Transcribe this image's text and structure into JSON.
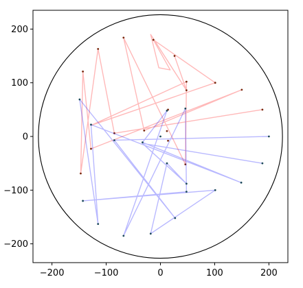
{
  "chart_data": {
    "type": "line",
    "title": "",
    "xlabel": "",
    "ylabel": "",
    "xlim": [
      -235,
      235
    ],
    "ylim": [
      -235,
      235
    ],
    "xticks": [
      -200,
      -100,
      0,
      100,
      200
    ],
    "yticks": [
      200,
      100,
      0,
      -100,
      -200
    ],
    "xtick_labels": [
      "−200",
      "−100",
      "0",
      "100",
      "200"
    ],
    "ytick_labels": [
      "200",
      "100",
      "0",
      "−100",
      "−200"
    ],
    "grid": false,
    "aspect": "equal",
    "circle": {
      "center": [
        0,
        0
      ],
      "radius": 225,
      "color": "#000000"
    },
    "series": [
      {
        "color": "#ff0000",
        "opacity": 0.28,
        "points": [
          [
            188,
            50
          ],
          [
            -85,
            6
          ],
          [
            -115,
            163
          ],
          [
            -147,
            -69
          ],
          [
            -143,
            121
          ],
          [
            -128,
            -23
          ],
          [
            150,
            87
          ],
          [
            -30,
            11
          ],
          [
            -68,
            184
          ],
          [
            46,
            -52
          ],
          [
            48,
            102
          ],
          [
            -127,
            21
          ],
          [
            101,
            100
          ],
          [
            -13,
            180
          ],
          [
            18,
            124
          ],
          [
            -3,
            128
          ],
          [
            -18,
            190
          ],
          [
            48,
            86
          ],
          [
            26,
            150
          ]
        ],
        "marker_points": [
          [
            188,
            50
          ],
          [
            -85,
            6
          ],
          [
            -115,
            163
          ],
          [
            -147,
            -69
          ],
          [
            -143,
            121
          ],
          [
            -128,
            -23
          ],
          [
            150,
            87
          ],
          [
            -30,
            11
          ],
          [
            -68,
            184
          ],
          [
            46,
            -52
          ],
          [
            48,
            102
          ],
          [
            101,
            100
          ],
          [
            -13,
            180
          ],
          [
            48,
            86
          ],
          [
            26,
            150
          ],
          [
            14,
            -8
          ],
          [
            12,
            10
          ],
          [
            14,
            50
          ]
        ]
      },
      {
        "color": "#0000ff",
        "opacity": 0.28,
        "points": [
          [
            200,
            0
          ],
          [
            -85,
            -7
          ],
          [
            27,
            -152
          ],
          [
            -149,
            69
          ],
          [
            -115,
            -163
          ],
          [
            -128,
            22
          ],
          [
            149,
            -86
          ],
          [
            -33,
            -11
          ],
          [
            12,
            48
          ],
          [
            -68,
            -185
          ],
          [
            46,
            52
          ],
          [
            48,
            -103
          ],
          [
            -143,
            -120
          ],
          [
            101,
            -100
          ],
          [
            -18,
            -181
          ],
          [
            12,
            -50
          ],
          [
            48,
            -88
          ],
          [
            -33,
            -13
          ],
          [
            188,
            -50
          ]
        ],
        "marker_points": [
          [
            200,
            0
          ],
          [
            -85,
            -7
          ],
          [
            27,
            -152
          ],
          [
            -149,
            69
          ],
          [
            -115,
            -163
          ],
          [
            -128,
            22
          ],
          [
            149,
            -86
          ],
          [
            -33,
            -11
          ],
          [
            12,
            48
          ],
          [
            -68,
            -185
          ],
          [
            46,
            52
          ],
          [
            48,
            -103
          ],
          [
            -143,
            -120
          ],
          [
            101,
            -100
          ],
          [
            -18,
            -181
          ],
          [
            12,
            -50
          ],
          [
            48,
            -88
          ],
          [
            188,
            -50
          ],
          [
            0,
            0
          ]
        ]
      }
    ]
  }
}
